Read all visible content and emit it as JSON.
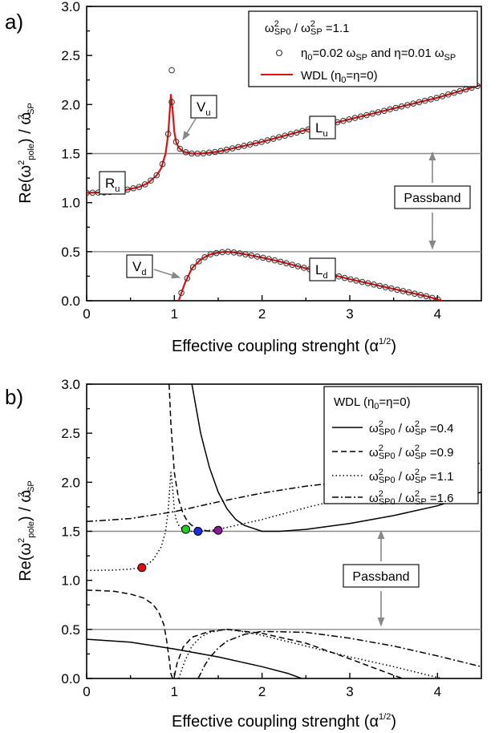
{
  "figure": {
    "panel_a_label": "a)",
    "panel_b_label": "b)"
  },
  "chart_data": [
    {
      "type": "line",
      "panel": "a)",
      "xlabel": "Effective coupling strenght (α1/2)",
      "ylabel": "Re(ω2pole) / ω2SP",
      "xlim": [
        0,
        4.5
      ],
      "ylim": [
        0,
        3.0
      ],
      "xticks": [
        "0",
        "1",
        "2",
        "3",
        "4"
      ],
      "yticks": [
        "0.0",
        "0.5",
        "1.0",
        "1.5",
        "2.0",
        "2.5",
        "3.0"
      ],
      "legend_position": "top-right",
      "legend_title": "ω2SP0 / ω2SP =1.1",
      "reference_lines": [
        0.5,
        1.5
      ],
      "colors": {
        "wdl": "#e01010",
        "markers": "#333333",
        "reference": "#888888"
      },
      "series": [
        {
          "name": "WDL (η0=η=0)",
          "style": "solid-red",
          "upper_x": [
            0.0,
            0.2,
            0.4,
            0.6,
            0.7,
            0.8,
            0.85,
            0.9,
            0.93,
            0.96,
            0.98,
            1.0,
            1.02,
            1.05,
            1.1,
            1.2,
            1.3,
            1.4,
            1.5,
            1.7,
            2.0,
            2.5,
            3.0,
            3.5,
            4.0,
            4.5
          ],
          "upper_y": [
            1.1,
            1.104,
            1.12,
            1.16,
            1.2,
            1.28,
            1.35,
            1.5,
            1.7,
            2.1,
            1.95,
            1.72,
            1.62,
            1.56,
            1.52,
            1.5,
            1.5,
            1.51,
            1.52,
            1.56,
            1.62,
            1.74,
            1.85,
            1.96,
            2.07,
            2.2
          ],
          "lower_x": [
            1.05,
            1.08,
            1.12,
            1.2,
            1.3,
            1.4,
            1.5,
            1.6,
            1.7,
            1.8,
            2.0,
            2.2,
            2.5,
            3.0,
            3.5,
            3.9,
            4.05
          ],
          "lower_y": [
            0.0,
            0.08,
            0.18,
            0.33,
            0.42,
            0.47,
            0.49,
            0.5,
            0.49,
            0.475,
            0.44,
            0.4,
            0.33,
            0.22,
            0.12,
            0.04,
            0.0
          ]
        },
        {
          "name": "η0=0.02 ωSP and η=0.01 ωSP",
          "style": "open-circles",
          "peak_point": [
            0.97,
            2.35
          ]
        }
      ],
      "annotations": [
        {
          "text": "Ru",
          "x": 0.3,
          "y": 1.17
        },
        {
          "text": "Vu",
          "x": 1.25,
          "y": 1.98
        },
        {
          "text": "Lu",
          "x": 2.6,
          "y": 1.78
        },
        {
          "text": "Vd",
          "x": 0.75,
          "y": 0.33
        },
        {
          "text": "Ld",
          "x": 2.6,
          "y": 0.29
        },
        {
          "text": "Passband",
          "x": 3.85,
          "y": 1.05
        }
      ]
    },
    {
      "type": "line",
      "panel": "b)",
      "xlabel": "Effective coupling strenght (α1/2)",
      "ylabel": "Re(ω2pole) / ω2SP",
      "xlim": [
        0,
        4.5
      ],
      "ylim": [
        0,
        3.0
      ],
      "xticks": [
        "0",
        "1",
        "2",
        "3",
        "4"
      ],
      "yticks": [
        "0.0",
        "0.5",
        "1.0",
        "1.5",
        "2.0",
        "2.5",
        "3.0"
      ],
      "legend_position": "top-right",
      "legend_title": "WDL (η0=η=0)",
      "reference_lines": [
        0.5,
        1.5
      ],
      "series": [
        {
          "name": "ω2SP0 / ω2SP =0.4",
          "style": "solid",
          "upper_x": [
            1.2,
            1.3,
            1.4,
            1.5,
            1.6,
            1.7,
            1.8,
            2.0,
            2.2,
            2.5,
            3.0,
            3.5,
            4.0,
            4.5
          ],
          "upper_y": [
            3.0,
            2.5,
            2.15,
            1.9,
            1.73,
            1.62,
            1.56,
            1.5,
            1.5,
            1.52,
            1.58,
            1.66,
            1.76,
            1.9
          ],
          "lower_x": [
            0.0,
            0.5,
            1.0,
            1.5,
            2.0,
            2.3,
            2.45
          ],
          "lower_y": [
            0.4,
            0.37,
            0.3,
            0.22,
            0.12,
            0.05,
            0.0
          ]
        },
        {
          "name": "ω2SP0 / ω2SP =0.9",
          "style": "dashed",
          "upper_x": [
            0.94,
            0.96,
            1.0,
            1.05,
            1.1,
            1.15,
            1.2,
            1.3,
            1.4,
            1.5
          ],
          "upper_y": [
            3.0,
            2.6,
            2.1,
            1.82,
            1.68,
            1.6,
            1.56,
            1.52,
            1.5,
            1.5
          ],
          "lower_x": [
            0.0,
            0.3,
            0.5,
            0.65,
            0.75,
            0.82,
            0.88,
            0.91,
            0.94,
            0.96,
            0.98,
            1.0,
            1.03,
            1.1,
            1.2,
            1.4,
            1.6,
            2.0,
            2.5,
            3.0,
            3.3,
            3.6
          ],
          "lower_y": [
            0.9,
            0.89,
            0.86,
            0.82,
            0.76,
            0.68,
            0.55,
            0.4,
            0.2,
            0.05,
            0.0,
            0.02,
            0.15,
            0.32,
            0.42,
            0.48,
            0.5,
            0.46,
            0.36,
            0.2,
            0.1,
            0.0
          ]
        },
        {
          "name": "ω2SP0 / ω2SP =1.1",
          "style": "dotted",
          "upper_x": [
            0.0,
            0.3,
            0.5,
            0.63,
            0.75,
            0.85,
            0.9,
            0.93,
            0.96,
            0.98,
            1.0,
            1.02,
            1.05,
            1.1,
            1.2,
            1.3,
            1.5,
            2.0,
            2.5,
            3.0,
            3.5,
            4.0,
            4.5
          ],
          "upper_y": [
            1.1,
            1.104,
            1.115,
            1.13,
            1.2,
            1.34,
            1.5,
            1.72,
            2.1,
            1.95,
            1.72,
            1.62,
            1.56,
            1.52,
            1.5,
            1.5,
            1.52,
            1.62,
            1.74,
            1.85,
            1.96,
            2.07,
            2.2
          ],
          "lower_x": [
            1.05,
            1.08,
            1.12,
            1.2,
            1.3,
            1.4,
            1.6,
            1.8,
            2.0,
            2.5,
            3.0,
            3.5,
            4.05
          ],
          "lower_y": [
            0.0,
            0.08,
            0.18,
            0.33,
            0.42,
            0.47,
            0.5,
            0.475,
            0.44,
            0.33,
            0.22,
            0.12,
            0.0
          ]
        },
        {
          "name": "ω2SP0 / ω2SP =1.6",
          "style": "dash-dot",
          "upper_x": [
            0.0,
            0.5,
            1.0,
            1.5,
            2.0,
            2.5,
            3.0,
            3.5,
            4.0,
            4.5
          ],
          "upper_y": [
            1.6,
            1.63,
            1.7,
            1.8,
            1.89,
            1.96,
            2.01,
            2.06,
            2.1,
            2.13
          ],
          "lower_x": [
            1.27,
            1.3,
            1.35,
            1.4,
            1.5,
            1.6,
            1.8,
            2.0,
            2.5,
            3.0,
            3.5,
            4.0,
            4.5
          ],
          "lower_y": [
            0.0,
            0.05,
            0.14,
            0.21,
            0.31,
            0.38,
            0.45,
            0.48,
            0.47,
            0.41,
            0.33,
            0.23,
            0.12
          ]
        }
      ],
      "markers": [
        {
          "x": 0.63,
          "y": 1.13,
          "color": "#e01010"
        },
        {
          "x": 1.13,
          "y": 1.52,
          "color": "#20d020"
        },
        {
          "x": 1.27,
          "y": 1.5,
          "color": "#1a2ee0"
        },
        {
          "x": 1.5,
          "y": 1.51,
          "color": "#8a1a9a"
        }
      ],
      "annotations": [
        {
          "text": "Passband",
          "x": 3.85,
          "y": 1.05
        }
      ]
    }
  ]
}
